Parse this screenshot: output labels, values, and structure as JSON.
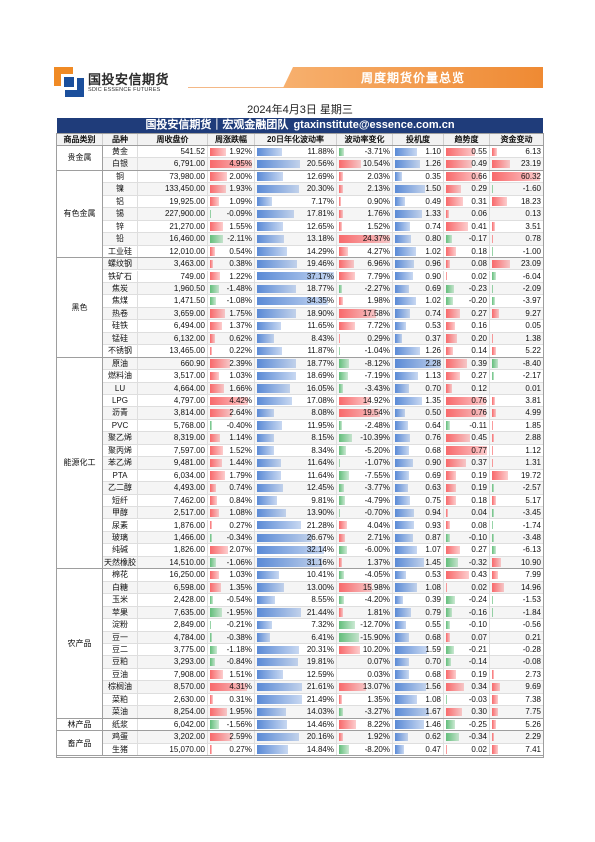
{
  "logo": {
    "name_cn": "国投安信期货",
    "name_en": "SDIC ESSENCE FUTURES",
    "icon": "company-logo-icon"
  },
  "banner": {
    "title": "周度期货价量总览"
  },
  "date": "2024年4月3日 星期三",
  "team_bar": {
    "team": "国投安信期货｜宏观金融团队",
    "email": "gtaxinstitute@essence.com.cn"
  },
  "columns": [
    "商品类别",
    "品种",
    "周收盘价",
    "周涨跌幅",
    "20日年化波动率",
    "波动率变化",
    "投机度",
    "趋势度",
    "资金变动"
  ],
  "colors": {
    "positive_bar": "#f8696b",
    "negative_bar": "#63be7b",
    "blue_bar": "#5a8ad6",
    "team_bar": "#1f3c7a",
    "banner": "#ef8a33"
  },
  "categories": [
    {
      "name": "贵金属",
      "items": [
        {
          "name": "黄金",
          "close": "541.52",
          "weekly_change": "1.92%",
          "vol20": "11.88%",
          "vol_change": "-3.71%",
          "speculation": "1.10",
          "trend": "0.55",
          "fund_flow": "6.13"
        },
        {
          "name": "白银",
          "close": "6,791.00",
          "weekly_change": "4.95%",
          "vol20": "20.56%",
          "vol_change": "10.54%",
          "speculation": "1.26",
          "trend": "0.49",
          "fund_flow": "23.19"
        }
      ]
    },
    {
      "name": "有色金属",
      "items": [
        {
          "name": "铜",
          "close": "73,980.00",
          "weekly_change": "2.00%",
          "vol20": "12.69%",
          "vol_change": "2.03%",
          "speculation": "0.35",
          "trend": "0.66",
          "fund_flow": "60.32"
        },
        {
          "name": "镍",
          "close": "133,450.00",
          "weekly_change": "1.93%",
          "vol20": "20.30%",
          "vol_change": "2.13%",
          "speculation": "1.50",
          "trend": "0.29",
          "fund_flow": "-1.60"
        },
        {
          "name": "铝",
          "close": "19,925.00",
          "weekly_change": "1.09%",
          "vol20": "7.17%",
          "vol_change": "0.90%",
          "speculation": "0.49",
          "trend": "0.31",
          "fund_flow": "18.23"
        },
        {
          "name": "锡",
          "close": "227,900.00",
          "weekly_change": "-0.09%",
          "vol20": "17.81%",
          "vol_change": "1.76%",
          "speculation": "1.33",
          "trend": "0.06",
          "fund_flow": "0.13"
        },
        {
          "name": "锌",
          "close": "21,270.00",
          "weekly_change": "1.55%",
          "vol20": "12.65%",
          "vol_change": "1.52%",
          "speculation": "0.74",
          "trend": "0.41",
          "fund_flow": "3.51"
        },
        {
          "name": "铅",
          "close": "16,460.00",
          "weekly_change": "-2.11%",
          "vol20": "13.18%",
          "vol_change": "24.37%",
          "speculation": "0.80",
          "trend": "-0.17",
          "fund_flow": "0.78"
        },
        {
          "name": "工业硅",
          "close": "12,010.00",
          "weekly_change": "0.54%",
          "vol20": "14.29%",
          "vol_change": "4.27%",
          "speculation": "1.02",
          "trend": "0.18",
          "fund_flow": "-1.00"
        }
      ]
    },
    {
      "name": "黑色",
      "items": [
        {
          "name": "螺纹钢",
          "close": "3,463.00",
          "weekly_change": "0.38%",
          "vol20": "19.46%",
          "vol_change": "6.96%",
          "speculation": "0.96",
          "trend": "0.08",
          "fund_flow": "23.09"
        },
        {
          "name": "铁矿石",
          "close": "749.00",
          "weekly_change": "1.22%",
          "vol20": "37.17%",
          "vol_change": "7.79%",
          "speculation": "0.90",
          "trend": "0.02",
          "fund_flow": "-6.04"
        },
        {
          "name": "焦炭",
          "close": "1,960.50",
          "weekly_change": "-1.48%",
          "vol20": "18.77%",
          "vol_change": "-2.27%",
          "speculation": "0.69",
          "trend": "-0.23",
          "fund_flow": "-2.09"
        },
        {
          "name": "焦煤",
          "close": "1,471.50",
          "weekly_change": "-1.08%",
          "vol20": "34.35%",
          "vol_change": "1.98%",
          "speculation": "1.02",
          "trend": "-0.20",
          "fund_flow": "-3.97"
        },
        {
          "name": "热卷",
          "close": "3,659.00",
          "weekly_change": "1.75%",
          "vol20": "18.90%",
          "vol_change": "17.58%",
          "speculation": "0.74",
          "trend": "0.27",
          "fund_flow": "9.27"
        },
        {
          "name": "硅铁",
          "close": "6,494.00",
          "weekly_change": "1.37%",
          "vol20": "11.65%",
          "vol_change": "7.72%",
          "speculation": "0.53",
          "trend": "0.16",
          "fund_flow": "0.05"
        },
        {
          "name": "锰硅",
          "close": "6,132.00",
          "weekly_change": "0.62%",
          "vol20": "8.43%",
          "vol_change": "0.29%",
          "speculation": "0.37",
          "trend": "0.20",
          "fund_flow": "1.38"
        },
        {
          "name": "不锈钢",
          "close": "13,465.00",
          "weekly_change": "0.22%",
          "vol20": "11.87%",
          "vol_change": "-1.04%",
          "speculation": "1.26",
          "trend": "0.14",
          "fund_flow": "5.22"
        }
      ]
    },
    {
      "name": "能源化工",
      "items": [
        {
          "name": "原油",
          "close": "660.90",
          "weekly_change": "2.39%",
          "vol20": "18.77%",
          "vol_change": "-8.12%",
          "speculation": "2.28",
          "trend": "0.39",
          "fund_flow": "-8.40"
        },
        {
          "name": "燃料油",
          "close": "3,517.00",
          "weekly_change": "1.03%",
          "vol20": "18.69%",
          "vol_change": "-7.19%",
          "speculation": "1.13",
          "trend": "0.27",
          "fund_flow": "-2.17"
        },
        {
          "name": "LU",
          "close": "4,664.00",
          "weekly_change": "1.66%",
          "vol20": "16.05%",
          "vol_change": "-3.43%",
          "speculation": "0.70",
          "trend": "0.12",
          "fund_flow": "0.01"
        },
        {
          "name": "LPG",
          "close": "4,797.00",
          "weekly_change": "4.42%",
          "vol20": "17.08%",
          "vol_change": "14.92%",
          "speculation": "1.35",
          "trend": "0.76",
          "fund_flow": "3.81"
        },
        {
          "name": "沥青",
          "close": "3,814.00",
          "weekly_change": "2.64%",
          "vol20": "8.08%",
          "vol_change": "19.54%",
          "speculation": "0.50",
          "trend": "0.76",
          "fund_flow": "4.99"
        },
        {
          "name": "PVC",
          "close": "5,768.00",
          "weekly_change": "-0.40%",
          "vol20": "11.95%",
          "vol_change": "-2.48%",
          "speculation": "0.64",
          "trend": "-0.11",
          "fund_flow": "1.85"
        },
        {
          "name": "聚乙烯",
          "close": "8,319.00",
          "weekly_change": "1.14%",
          "vol20": "8.15%",
          "vol_change": "-10.39%",
          "speculation": "0.76",
          "trend": "0.45",
          "fund_flow": "2.88"
        },
        {
          "name": "聚丙烯",
          "close": "7,597.00",
          "weekly_change": "1.52%",
          "vol20": "8.34%",
          "vol_change": "-5.20%",
          "speculation": "0.68",
          "trend": "0.77",
          "fund_flow": "1.12"
        },
        {
          "name": "苯乙烯",
          "close": "9,481.00",
          "weekly_change": "1.44%",
          "vol20": "11.64%",
          "vol_change": "-1.07%",
          "speculation": "0.90",
          "trend": "0.37",
          "fund_flow": "1.31"
        },
        {
          "name": "PTA",
          "close": "6,034.00",
          "weekly_change": "1.79%",
          "vol20": "11.64%",
          "vol_change": "-7.55%",
          "speculation": "0.69",
          "trend": "0.19",
          "fund_flow": "19.72"
        },
        {
          "name": "乙二醇",
          "close": "4,493.00",
          "weekly_change": "0.74%",
          "vol20": "12.45%",
          "vol_change": "-3.77%",
          "speculation": "0.63",
          "trend": "0.19",
          "fund_flow": "-2.57"
        },
        {
          "name": "短纤",
          "close": "7,462.00",
          "weekly_change": "0.84%",
          "vol20": "9.81%",
          "vol_change": "-4.79%",
          "speculation": "0.75",
          "trend": "0.18",
          "fund_flow": "5.17"
        },
        {
          "name": "甲醇",
          "close": "2,517.00",
          "weekly_change": "1.08%",
          "vol20": "13.90%",
          "vol_change": "-0.70%",
          "speculation": "0.94",
          "trend": "0.04",
          "fund_flow": "-3.45"
        },
        {
          "name": "尿素",
          "close": "1,876.00",
          "weekly_change": "0.27%",
          "vol20": "21.28%",
          "vol_change": "4.04%",
          "speculation": "0.93",
          "trend": "0.08",
          "fund_flow": "-1.74"
        },
        {
          "name": "玻璃",
          "close": "1,466.00",
          "weekly_change": "-0.34%",
          "vol20": "26.67%",
          "vol_change": "2.71%",
          "speculation": "0.87",
          "trend": "-0.10",
          "fund_flow": "-3.48"
        },
        {
          "name": "纯碱",
          "close": "1,826.00",
          "weekly_change": "2.07%",
          "vol20": "32.14%",
          "vol_change": "-6.00%",
          "speculation": "1.07",
          "trend": "0.27",
          "fund_flow": "-6.13"
        },
        {
          "name": "天然橡胶",
          "close": "14,510.00",
          "weekly_change": "-1.06%",
          "vol20": "31.16%",
          "vol_change": "1.37%",
          "speculation": "1.45",
          "trend": "-0.32",
          "fund_flow": "10.90"
        }
      ]
    },
    {
      "name": "农产品",
      "items": [
        {
          "name": "棉花",
          "close": "16,250.00",
          "weekly_change": "1.03%",
          "vol20": "10.41%",
          "vol_change": "-4.05%",
          "speculation": "0.53",
          "trend": "0.43",
          "fund_flow": "7.99"
        },
        {
          "name": "白糖",
          "close": "6,598.00",
          "weekly_change": "1.35%",
          "vol20": "13.00%",
          "vol_change": "15.98%",
          "speculation": "1.08",
          "trend": "0.02",
          "fund_flow": "14.96"
        },
        {
          "name": "玉米",
          "close": "2,428.00",
          "weekly_change": "-0.54%",
          "vol20": "8.55%",
          "vol_change": "-4.20%",
          "speculation": "0.39",
          "trend": "-0.24",
          "fund_flow": "-1.53"
        },
        {
          "name": "苹果",
          "close": "7,635.00",
          "weekly_change": "-1.95%",
          "vol20": "21.44%",
          "vol_change": "1.81%",
          "speculation": "0.79",
          "trend": "-0.16",
          "fund_flow": "-1.84"
        },
        {
          "name": "淀粉",
          "close": "2,849.00",
          "weekly_change": "-0.21%",
          "vol20": "7.32%",
          "vol_change": "-12.70%",
          "speculation": "0.55",
          "trend": "-0.10",
          "fund_flow": "-0.56"
        },
        {
          "name": "豆一",
          "close": "4,784.00",
          "weekly_change": "-0.38%",
          "vol20": "6.41%",
          "vol_change": "-15.90%",
          "speculation": "0.68",
          "trend": "0.07",
          "fund_flow": "0.21"
        },
        {
          "name": "豆二",
          "close": "3,775.00",
          "weekly_change": "-1.18%",
          "vol20": "20.31%",
          "vol_change": "10.20%",
          "speculation": "1.59",
          "trend": "-0.21",
          "fund_flow": "-0.28"
        },
        {
          "name": "豆粕",
          "close": "3,293.00",
          "weekly_change": "-0.84%",
          "vol20": "19.81%",
          "vol_change": "0.07%",
          "speculation": "0.70",
          "trend": "-0.14",
          "fund_flow": "-0.08"
        },
        {
          "name": "豆油",
          "close": "7,908.00",
          "weekly_change": "1.51%",
          "vol20": "12.59%",
          "vol_change": "0.03%",
          "speculation": "0.68",
          "trend": "0.19",
          "fund_flow": "2.73"
        },
        {
          "name": "棕榈油",
          "close": "8,570.00",
          "weekly_change": "4.31%",
          "vol20": "21.61%",
          "vol_change": "13.07%",
          "speculation": "1.56",
          "trend": "0.34",
          "fund_flow": "9.69"
        },
        {
          "name": "菜粕",
          "close": "2,630.00",
          "weekly_change": "0.31%",
          "vol20": "21.49%",
          "vol_change": "1.35%",
          "speculation": "1.08",
          "trend": "-0.03",
          "fund_flow": "7.38"
        },
        {
          "name": "菜油",
          "close": "8,254.00",
          "weekly_change": "1.95%",
          "vol20": "14.03%",
          "vol_change": "-3.27%",
          "speculation": "1.67",
          "trend": "0.30",
          "fund_flow": "7.75"
        }
      ]
    },
    {
      "name": "林产品",
      "items": [
        {
          "name": "纸浆",
          "close": "6,042.00",
          "weekly_change": "-1.56%",
          "vol20": "14.46%",
          "vol_change": "8.22%",
          "speculation": "1.46",
          "trend": "-0.25",
          "fund_flow": "5.26"
        }
      ]
    },
    {
      "name": "畜产品",
      "items": [
        {
          "name": "鸡蛋",
          "close": "3,202.00",
          "weekly_change": "2.59%",
          "vol20": "20.16%",
          "vol_change": "1.92%",
          "speculation": "0.62",
          "trend": "-0.34",
          "fund_flow": "2.29"
        },
        {
          "name": "生猪",
          "close": "15,070.00",
          "weekly_change": "0.27%",
          "vol20": "14.84%",
          "vol_change": "-8.20%",
          "speculation": "0.47",
          "trend": "0.02",
          "fund_flow": "7.41"
        }
      ]
    }
  ]
}
